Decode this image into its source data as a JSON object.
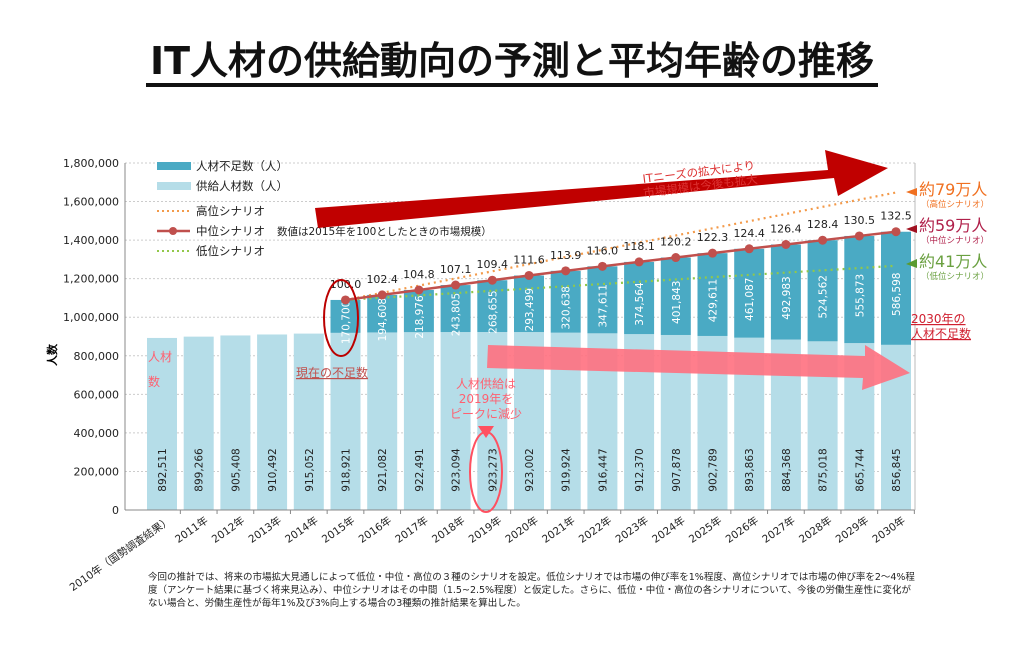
{
  "title": "IT人材の供給動向の予測と平均年齢の推移",
  "chart_data": {
    "type": "bar",
    "stacked": true,
    "ylabel": "人数",
    "ylim": [
      0,
      1800000
    ],
    "yticks": [
      "0",
      "200,000",
      "400,000",
      "600,000",
      "800,000",
      "1,000,000",
      "1,200,000",
      "1,400,000",
      "1,600,000",
      "1,800,000"
    ],
    "grid": true,
    "legend_position": "top-left",
    "categories": [
      "2010年（国勢調査結果）",
      "2011年",
      "2012年",
      "2013年",
      "2014年",
      "2015年",
      "2016年",
      "2017年",
      "2018年",
      "2019年",
      "2020年",
      "2021年",
      "2022年",
      "2023年",
      "2024年",
      "2025年",
      "2026年",
      "2027年",
      "2028年",
      "2029年",
      "2030年"
    ],
    "series": [
      {
        "name": "供給人材数（人）",
        "type": "bar",
        "color": "#b5dde8",
        "values": [
          892511,
          899266,
          905408,
          910492,
          915052,
          918921,
          921082,
          922491,
          923094,
          923273,
          923002,
          919924,
          916447,
          912370,
          907878,
          902789,
          893863,
          884368,
          875018,
          865744,
          856845
        ],
        "labels": [
          "892,511",
          "899,266",
          "905,408",
          "910,492",
          "915,052",
          "918,921",
          "921,082",
          "922,491",
          "923,094",
          "923,273",
          "923,002",
          "919,924",
          "916,447",
          "912,370",
          "907,878",
          "902,789",
          "893,863",
          "884,368",
          "875,018",
          "865,744",
          "856,845"
        ]
      },
      {
        "name": "人材不足数（人）",
        "type": "bar",
        "color": "#4aaac4",
        "values": [
          null,
          null,
          null,
          null,
          null,
          170700,
          194608,
          218976,
          243805,
          268655,
          293499,
          320638,
          347611,
          374564,
          401843,
          429611,
          461087,
          492983,
          524562,
          555873,
          586598
        ],
        "labels": [
          "",
          "",
          "",
          "",
          "",
          "170,700",
          "194,608",
          "218,976",
          "243,805",
          "268,655",
          "293,499",
          "320,638",
          "347,611",
          "374,564",
          "401,843",
          "429,611",
          "461,087",
          "492,983",
          "524,562",
          "555,873",
          "586,598"
        ]
      },
      {
        "name": "高位シナリオ",
        "type": "line",
        "style": "dotted",
        "color": "#f39a4a",
        "values": [
          null,
          null,
          null,
          null,
          null,
          1089621,
          1126769,
          1163917,
          1201065,
          1238213,
          1275361,
          1312509,
          1349657,
          1386805,
          1423953,
          1461101,
          1498249,
          1535397,
          1572545,
          1609693,
          1646845
        ]
      },
      {
        "name": "中位シナリオ",
        "type": "line",
        "style": "solid-marker",
        "color": "#c0504d",
        "values": [
          null,
          null,
          null,
          null,
          null,
          1089621,
          1115690,
          1141467,
          1166899,
          1191928,
          1216501,
          1240562,
          1264058,
          1286934,
          1309721,
          1332400,
          1354950,
          1377351,
          1399580,
          1421617,
          1443443
        ],
        "market_index": [
          "",
          "",
          "",
          "",
          "",
          "100.0",
          "102.4",
          "104.8",
          "107.1",
          "109.4",
          "111.6",
          "113.9",
          "116.0",
          "118.1",
          "120.2",
          "122.3",
          "124.4",
          "126.4",
          "128.4",
          "130.5",
          "132.5"
        ]
      },
      {
        "name": "低位シナリオ",
        "type": "line",
        "style": "dotted",
        "color": "#92c84a",
        "values": [
          null,
          null,
          null,
          null,
          null,
          1089621,
          1101436,
          1113251,
          1125066,
          1136881,
          1148696,
          1160511,
          1172326,
          1184141,
          1195956,
          1207771,
          1219586,
          1231401,
          1243216,
          1255031,
          1266845
        ]
      }
    ],
    "legend_note": "数値は2015年を100としたときの市場規模）"
  },
  "annotations": {
    "growth_arrow": [
      "ITニーズの拡大により",
      "市場規模は今後も拡大"
    ],
    "high_total": "約79万人",
    "high_sub": "（高位シナリオ）",
    "mid_total": "約59万人",
    "mid_sub": "（中位シナリオ）",
    "low_total": "約41万人",
    "low_sub": "（低位シナリオ）",
    "shortage_2030": [
      "2030年の",
      "人材不足数"
    ],
    "current_shortage": "現在の不足数",
    "supply_peak": [
      "人材供給は",
      "2019年を",
      "ピークに減少"
    ],
    "supply_label": [
      "人材",
      "数"
    ]
  },
  "footnote": "今回の推計では、将来の市場拡大見通しによって低位・中位・高位の３種のシナリオを設定。低位シナリオでは市場の伸び率を1%程度、高位シナリオでは市場の伸び率を2～4%程度（アンケート結果に基づく将来見込み）、中位シナリオはその中間（1.5~2.5%程度）と仮定した。さらに、低位・中位・高位の各シナリオについて、今後の労働生産性に変化がない場合と、労働生産性が毎年1%及び3%向上する場合の3種類の推計結果を算出した。"
}
